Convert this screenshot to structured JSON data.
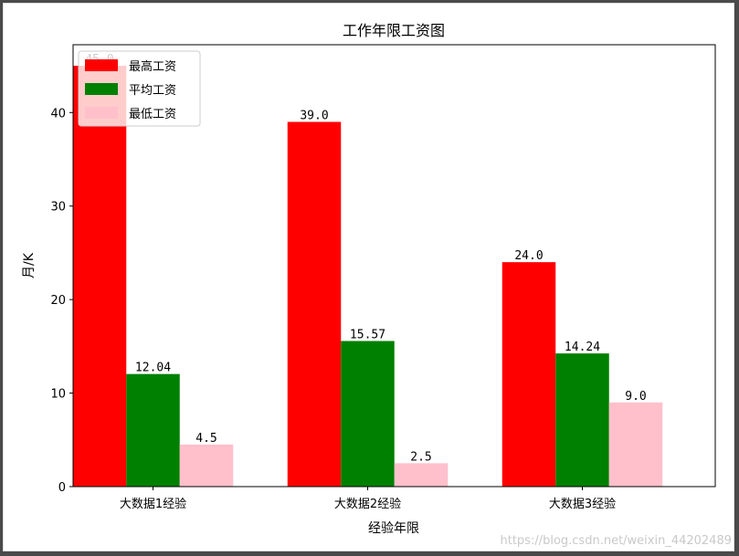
{
  "chart_data": {
    "type": "bar",
    "title": "工作年限工资图",
    "xlabel": "经验年限",
    "ylabel": "月/K",
    "categories": [
      "大数据1经验",
      "大数据2经验",
      "大数据3经验"
    ],
    "series": [
      {
        "name": "最高工资",
        "color": "#ff0000",
        "values": [
          45.0,
          39.0,
          24.0
        ],
        "labels": [
          "45.0",
          "39.0",
          "24.0"
        ]
      },
      {
        "name": "平均工资",
        "color": "#008000",
        "values": [
          12.04,
          15.57,
          14.24
        ],
        "labels": [
          "12.04",
          "15.57",
          "14.24"
        ]
      },
      {
        "name": "最低工资",
        "color": "#ffc0cb",
        "values": [
          4.5,
          2.5,
          9.0
        ],
        "labels": [
          "4.5",
          "2.5",
          "9.0"
        ]
      }
    ],
    "ylim": [
      0,
      47.25
    ],
    "yticks": [
      0,
      10,
      20,
      30,
      40
    ],
    "grid": false,
    "legend_position": "top-left"
  },
  "watermark": "https://blog.csdn.net/weixin_44202489"
}
